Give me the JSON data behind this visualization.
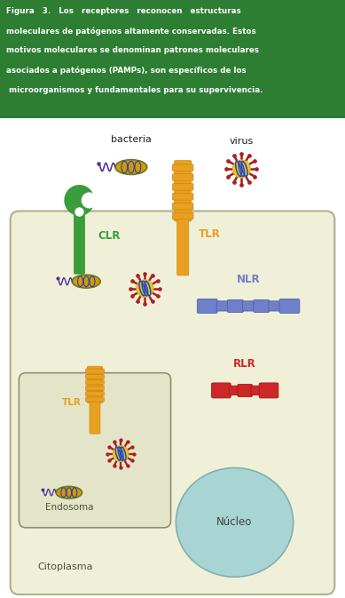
{
  "fig_width": 3.89,
  "fig_height": 6.73,
  "dpi": 100,
  "header_lines": [
    "Figura   3.   Los   receptores   reconocen   estructuras",
    "moleculares de patógenos altamente conservadas. Estos",
    "motivos moleculares se denominan patrones moleculares",
    "asociados a patógenos (PAMPs), son específicos de los",
    " microorganismos y fundamentales para su supervivencia."
  ],
  "header_bg": "#2d7d32",
  "header_text_color": "#ffffff",
  "cell_bg": "#f0f0d8",
  "cell_border": "#b0b090",
  "endosome_bg": "#e4e4c8",
  "endosome_border": "#909070",
  "nucleus_color": "#a8d4d4",
  "nucleus_border": "#80b0b0",
  "clr_color": "#3a9c3a",
  "tlr_color": "#e8a020",
  "tlr_border": "#c88010",
  "nlr_color": "#7080c8",
  "nlr_border": "#5060a8",
  "rlr_color": "#cc2828",
  "rlr_border": "#aa1818",
  "bact_body": "#d4980a",
  "bact_outline": "#6a7a20",
  "bact_stripe": "#2244aa",
  "bact_flagella": "#5030a0",
  "virus_body": "#e8c818",
  "virus_core": "#ddb810",
  "virus_stripe": "#2244cc",
  "virus_spike": "#aa2020",
  "label_bacteria": "bacteria",
  "label_virus": "virus",
  "label_clr": "CLR",
  "label_tlr": "TLR",
  "label_nlr": "NLR",
  "label_rlr": "RLR",
  "label_endosoma": "Endosoma",
  "label_citoplasma": "Citoplasma",
  "label_nucleo": "Núcleo"
}
